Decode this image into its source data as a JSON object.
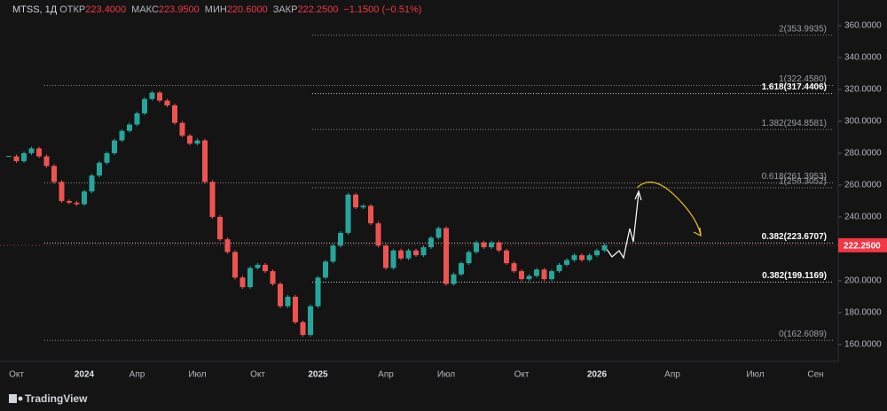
{
  "header": {
    "symbol": "MTSS, 1Д",
    "fields": [
      {
        "label": "ОТКР",
        "value": "223.4000"
      },
      {
        "label": "МАКС",
        "value": "223.9500"
      },
      {
        "label": "МИН",
        "value": "220.6000"
      },
      {
        "label": "ЗАКР",
        "value": "222.2500"
      }
    ],
    "change": "−1.1500 (−0.51%)"
  },
  "branding": "TradingView",
  "chart_data": {
    "type": "candlestick",
    "categories": [
      null,
      "Окт",
      null,
      null,
      null,
      null,
      null,
      null,
      null,
      null,
      "2024",
      null,
      null,
      null,
      null,
      null,
      null,
      "Апр",
      null,
      null,
      null,
      null,
      null,
      null,
      null,
      "Июл",
      null,
      null,
      null,
      null,
      null,
      null,
      null,
      "Окт",
      null,
      null,
      null,
      null,
      null,
      null,
      null,
      "2025",
      null,
      null,
      null,
      null,
      null,
      null,
      null,
      null,
      "Апр",
      null,
      null,
      null,
      null,
      null,
      null,
      null,
      "Июл",
      null,
      null,
      null,
      null,
      null,
      null,
      null,
      null,
      null,
      "Окт",
      null,
      null,
      null,
      null,
      null,
      null,
      null,
      null,
      null,
      "2026",
      null,
      null,
      null,
      null,
      null,
      null,
      null,
      null,
      null,
      "Апр",
      null,
      null,
      null,
      null,
      null,
      null,
      null,
      null,
      null,
      null,
      "Июл",
      null,
      null,
      null,
      null,
      null,
      null,
      null,
      "Сен"
    ],
    "values": [
      278,
      275,
      280,
      283,
      278,
      272,
      262,
      250,
      249,
      248,
      256,
      266,
      274,
      280,
      288,
      294,
      298,
      305,
      314,
      318,
      313,
      310,
      299,
      291,
      286,
      288,
      262,
      240,
      226,
      218,
      202,
      196,
      208,
      210,
      206,
      198,
      184,
      190,
      174,
      166,
      184,
      202,
      212,
      222,
      230,
      254,
      246,
      247,
      236,
      222,
      208,
      219,
      214,
      219,
      216,
      221,
      227,
      233,
      198,
      204,
      211,
      218,
      224,
      221,
      224,
      219,
      211,
      206,
      201,
      203,
      207,
      201,
      206,
      210,
      213,
      216,
      213,
      216,
      219,
      222.25,
      null,
      null,
      null,
      null,
      null,
      null,
      null,
      null,
      null,
      null,
      null,
      null,
      null,
      null,
      null,
      null,
      null,
      null,
      null,
      null,
      null,
      null,
      null,
      null,
      null,
      null,
      null,
      null
    ],
    "up_color": "#26a69a",
    "down_color": "#ef5350",
    "ylim": [
      149.4,
      376.1
    ],
    "yticks": [
      {
        "value": 160,
        "label": "160.0000"
      },
      {
        "value": 180,
        "label": "180.0000"
      },
      {
        "value": 200,
        "label": "200.0000"
      },
      {
        "value": 220,
        "label": "220.0000"
      },
      {
        "value": 240,
        "label": "240.0000"
      },
      {
        "value": 260,
        "label": "260.0000"
      },
      {
        "value": 280,
        "label": "280.0000"
      },
      {
        "value": 300,
        "label": "300.0000"
      },
      {
        "value": 320,
        "label": "320.0000"
      },
      {
        "value": 340,
        "label": "340.0000"
      },
      {
        "value": 360,
        "label": "360.0000"
      }
    ],
    "last_price": {
      "value": 222.25,
      "label": "222.2500"
    },
    "fib_left": [
      {
        "label": "0(162.6089)",
        "value": 162.6089,
        "highlight": false
      },
      {
        "label": "0.382(223.6707)",
        "value": 223.6707,
        "highlight": true
      },
      {
        "label": "0.618(261.3953)",
        "value": 261.3953,
        "highlight": false
      },
      {
        "label": "1(322.4580)",
        "value": 322.458,
        "highlight": false
      }
    ],
    "fib_right": [
      {
        "label": "0.382(199.1169)",
        "value": 199.1169,
        "highlight": true
      },
      {
        "label": "1(258.3052)",
        "value": 258.3052,
        "highlight": false
      },
      {
        "label": "1.382(294.8581)",
        "value": 294.8581,
        "highlight": false
      },
      {
        "label": "1.618(317.4406)",
        "value": 317.4406,
        "highlight": true
      },
      {
        "label": "2(353.9935)",
        "value": 353.9935,
        "highlight": false
      }
    ]
  }
}
